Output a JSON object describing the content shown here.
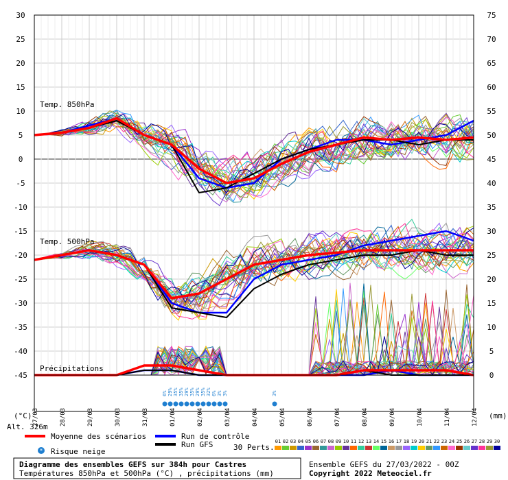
{
  "chart_data": {
    "type": "line",
    "title": "Diagramme des ensembles GEFS sur 384h pour Castres",
    "subtitle": "Températures 850hPa et 500hPa (°C) , précipitations (mm)",
    "run_label": "Ensemble GEFS du 27/03/2022 - 00Z",
    "copyright": "Copyright 2022 Meteociel.fr",
    "altitude_label": "Alt. 326m",
    "left_unit": "(°C)",
    "right_unit": "(mm)",
    "left_axis": {
      "ticks": [
        30,
        25,
        20,
        15,
        10,
        5,
        0,
        -5,
        -10,
        -15,
        -20,
        -25,
        -30,
        -35,
        -40,
        -45
      ],
      "range": [
        -45,
        30
      ]
    },
    "right_axis": {
      "ticks": [
        75,
        70,
        65,
        60,
        55,
        50,
        45,
        40,
        35,
        30,
        25,
        20,
        15,
        10,
        5,
        0
      ],
      "range": [
        0,
        75
      ]
    },
    "x_dates": [
      "27/03",
      "28/03",
      "29/03",
      "30/03",
      "31/03",
      "01/04",
      "02/04",
      "03/04",
      "04/04",
      "05/04",
      "06/04",
      "07/04",
      "08/04",
      "09/04",
      "10/04",
      "11/04",
      "12/04"
    ],
    "panel_labels": {
      "t850": "Temp. 850hPa",
      "t500": "Temp. 500hPa",
      "precip": "Précipitations"
    },
    "legend": {
      "mean": "Moyenne des scénarios",
      "control": "Run de contrôle",
      "gfs": "Run GFS",
      "snow": "Risque neige",
      "perts": "30 Perts.",
      "member_labels": [
        "01",
        "02",
        "03",
        "04",
        "05",
        "06",
        "07",
        "08",
        "09",
        "10",
        "11",
        "12",
        "13",
        "14",
        "15",
        "16",
        "17",
        "18",
        "19",
        "20",
        "21",
        "22",
        "23",
        "24",
        "25",
        "26",
        "27",
        "28",
        "29",
        "30"
      ]
    },
    "colors": {
      "mean": "#ff0000",
      "control": "#0000ff",
      "gfs": "#000000",
      "snow": "#1f7fd0",
      "members": [
        "#ff9900",
        "#66cc33",
        "#cc9900",
        "#3366cc",
        "#9933cc",
        "#996633",
        "#339999",
        "#cc66cc",
        "#99cc00",
        "#663399",
        "#ff6600",
        "#33cc99",
        "#cc3333",
        "#66ff66",
        "#006699",
        "#cc9966",
        "#999999",
        "#9966ff",
        "#00cccc",
        "#ffcc00",
        "#669966",
        "#3399ff",
        "#cc6600",
        "#ff66cc",
        "#993300",
        "#66cccc",
        "#6633cc",
        "#ff3399",
        "#999933",
        "#000099"
      ]
    },
    "series": [
      {
        "name": "Moyenne des scénarios",
        "values_t850": [
          5,
          5.5,
          6.5,
          8.5,
          5,
          3,
          -2,
          -5,
          -4,
          -1,
          1.5,
          3,
          4.5,
          4,
          4.5,
          4,
          4.5
        ],
        "values_t500": [
          -21,
          -20,
          -19,
          -20,
          -22,
          -29,
          -28,
          -25,
          -22,
          -21,
          -20,
          -19.5,
          -19,
          -19,
          -19,
          -19,
          -19
        ],
        "values_precip": [
          0,
          0,
          0,
          0,
          2,
          2,
          1,
          0,
          0,
          0,
          0,
          0,
          1,
          1,
          1,
          1,
          0
        ]
      },
      {
        "name": "Run de contrôle",
        "values_t850": [
          5,
          5.5,
          7,
          8.5,
          5,
          3,
          -4,
          -6,
          -5,
          0,
          2,
          4,
          4,
          3,
          4,
          5,
          8
        ],
        "values_t500": [
          -21,
          -20,
          -19,
          -20,
          -22,
          -30,
          -32,
          -32,
          -25,
          -22,
          -21,
          -20,
          -18,
          -17,
          -16,
          -15,
          -17
        ],
        "values_precip": [
          0,
          0,
          0,
          0,
          1,
          1,
          0,
          0,
          0,
          0,
          0,
          0,
          0,
          1,
          0,
          0,
          0
        ]
      },
      {
        "name": "Run GFS",
        "values_t850": [
          5,
          5.5,
          6.5,
          8,
          5,
          3,
          -7,
          -6,
          -3,
          0,
          2,
          3,
          4,
          4,
          3,
          4,
          4
        ],
        "values_t500": [
          -21,
          -20,
          -19,
          -20,
          -22,
          -31,
          -32,
          -33,
          -27,
          -24,
          -22,
          -21,
          -20,
          -20,
          -19,
          -20,
          -20
        ],
        "values_precip": [
          0,
          0,
          0,
          0,
          1,
          1,
          0,
          0,
          0,
          0,
          0,
          0,
          1,
          0,
          0,
          0,
          0
        ]
      }
    ],
    "snow_risk": [
      {
        "date": "01/04",
        "labels": [
          "6%",
          "29%",
          "35%",
          "35%",
          "29%",
          "35%",
          "29%",
          "35%",
          "32%",
          "6%"
        ]
      },
      {
        "date": "03/04",
        "labels": [
          "3%",
          "3%"
        ]
      },
      {
        "date": "05/04",
        "labels": [
          "3%"
        ]
      }
    ],
    "grid": true
  }
}
